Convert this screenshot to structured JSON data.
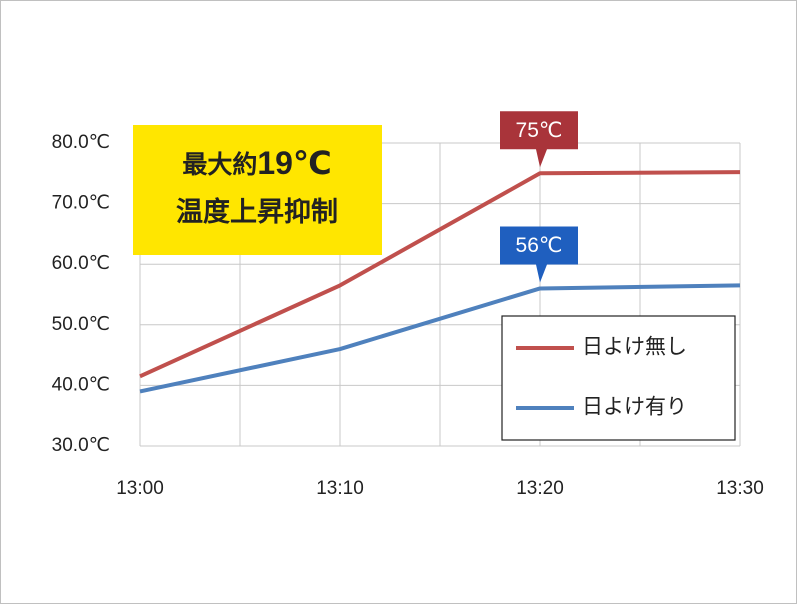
{
  "chart_data": {
    "type": "line",
    "categories": [
      "13:00",
      "13:10",
      "13:20",
      "13:30"
    ],
    "series": [
      {
        "name": "日よけ無し",
        "color": "#c0504d",
        "values": [
          41.5,
          56.5,
          75,
          75.2
        ],
        "value_labels": [
          null,
          null,
          "75℃",
          null
        ],
        "label_color": "#a9343a"
      },
      {
        "name": "日よけ有り",
        "color": "#4f81bd",
        "values": [
          39,
          46,
          56,
          56.5
        ],
        "value_labels": [
          null,
          null,
          "56℃",
          null
        ],
        "label_color": "#1f5fbf"
      }
    ],
    "ylim": [
      30,
      80
    ],
    "yticks": [
      {
        "value": 30,
        "label": "30.0℃"
      },
      {
        "value": 40,
        "label": "40.0℃"
      },
      {
        "value": 50,
        "label": "50.0℃"
      },
      {
        "value": 60,
        "label": "60.0℃"
      },
      {
        "value": 70,
        "label": "70.0℃"
      },
      {
        "value": 80,
        "label": "80.0℃"
      }
    ],
    "grid": true,
    "legend": "lower right",
    "highlight": {
      "prefix": "最大約",
      "emphasis": "19℃",
      "line2": "温度上昇抑制",
      "color": "#ffe600"
    }
  }
}
